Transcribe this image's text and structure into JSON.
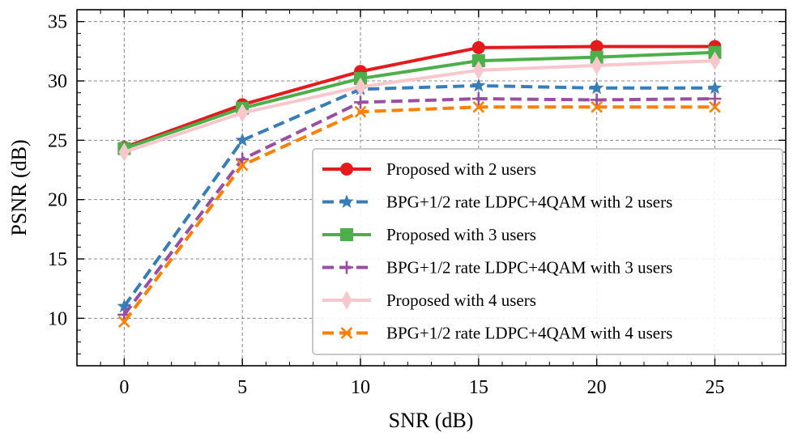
{
  "chart_data": {
    "type": "line",
    "title": "",
    "xlabel": "SNR (dB)",
    "ylabel": "PSNR (dB)",
    "xlim": [
      -2,
      28
    ],
    "ylim": [
      6,
      36
    ],
    "xticks": [
      0,
      5,
      10,
      15,
      20,
      25
    ],
    "yticks": [
      10,
      15,
      20,
      25,
      30,
      35
    ],
    "xtick_labels": [
      "0",
      "5",
      "10",
      "15",
      "20",
      "25"
    ],
    "ytick_labels": [
      "10",
      "15",
      "20",
      "25",
      "30",
      "35"
    ],
    "grid": true,
    "legend_position": "lower-right",
    "x": [
      0,
      5,
      10,
      15,
      20,
      25
    ],
    "series": [
      {
        "name": "Proposed with 2 users",
        "color": "#e41a1c",
        "dash": "solid",
        "marker": "circle",
        "values": [
          24.4,
          28.0,
          30.8,
          32.8,
          32.9,
          32.9
        ]
      },
      {
        "name": "BPG+1/2 rate LDPC+4QAM with 2 users",
        "color": "#377eb8",
        "dash": "dashed",
        "marker": "star",
        "values": [
          11.0,
          25.0,
          29.3,
          29.6,
          29.4,
          29.4
        ]
      },
      {
        "name": "Proposed with 3 users",
        "color": "#4daf4a",
        "dash": "solid",
        "marker": "square",
        "values": [
          24.3,
          27.7,
          30.2,
          31.7,
          32.0,
          32.4
        ]
      },
      {
        "name": "BPG+1/2 rate LDPC+4QAM with 3 users",
        "color": "#984ea3",
        "dash": "dashed",
        "marker": "plus",
        "values": [
          10.3,
          23.4,
          28.2,
          28.5,
          28.4,
          28.5
        ]
      },
      {
        "name": "Proposed with 4 users",
        "color": "#f9c6cc",
        "dash": "solid",
        "marker": "diamond",
        "values": [
          24.0,
          27.3,
          29.5,
          30.9,
          31.3,
          31.7
        ]
      },
      {
        "name": "BPG+1/2 rate LDPC+4QAM with 4 users",
        "color": "#ff7f00",
        "dash": "dashed",
        "marker": "x",
        "values": [
          9.7,
          22.9,
          27.4,
          27.8,
          27.8,
          27.8
        ]
      }
    ]
  }
}
